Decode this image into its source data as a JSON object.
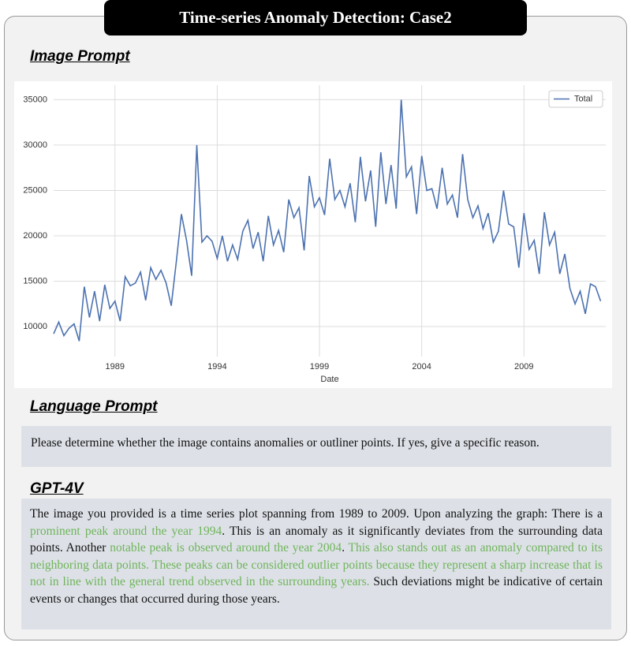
{
  "header": {
    "title": "Time-series Anomaly Detection: Case2"
  },
  "image_prompt": {
    "heading": "Image Prompt"
  },
  "chart_data": {
    "type": "line",
    "xlabel": "Date",
    "x": [
      1986,
      1986.25,
      1986.5,
      1986.75,
      1987,
      1987.25,
      1987.5,
      1987.75,
      1988,
      1988.25,
      1988.5,
      1988.75,
      1989,
      1989.25,
      1989.5,
      1989.75,
      1990,
      1990.25,
      1990.5,
      1990.75,
      1991,
      1991.25,
      1991.5,
      1991.75,
      1992,
      1992.25,
      1992.5,
      1992.75,
      1993,
      1993.25,
      1993.5,
      1993.75,
      1994,
      1994.25,
      1994.5,
      1994.75,
      1995,
      1995.25,
      1995.5,
      1995.75,
      1996,
      1996.25,
      1996.5,
      1996.75,
      1997,
      1997.25,
      1997.5,
      1997.75,
      1998,
      1998.25,
      1998.5,
      1998.75,
      1999,
      1999.25,
      1999.5,
      1999.75,
      2000,
      2000.25,
      2000.5,
      2000.75,
      2001,
      2001.25,
      2001.5,
      2001.75,
      2002,
      2002.25,
      2002.5,
      2002.75,
      2003,
      2003.25,
      2003.5,
      2003.75,
      2004,
      2004.25,
      2004.5,
      2004.75,
      2005,
      2005.25,
      2005.5,
      2005.75,
      2006,
      2006.25,
      2006.5,
      2006.75,
      2007,
      2007.25,
      2007.5,
      2007.75,
      2008,
      2008.25,
      2008.5,
      2008.75,
      2009,
      2009.25,
      2009.5,
      2009.75,
      2010,
      2010.25,
      2010.5,
      2010.75,
      2011,
      2011.25,
      2011.5,
      2011.75,
      2012,
      2012.25,
      2012.5,
      2012.75
    ],
    "series": [
      {
        "name": "Total",
        "color": "#4c72b0",
        "values": [
          9200,
          10500,
          9000,
          9800,
          10300,
          8400,
          14400,
          11000,
          13900,
          10600,
          14600,
          12000,
          12800,
          10600,
          15500,
          14500,
          14800,
          16000,
          12900,
          16500,
          15200,
          16200,
          14800,
          12300,
          17200,
          22400,
          19500,
          15600,
          30000,
          19300,
          20000,
          19400,
          17500,
          20000,
          17200,
          19000,
          17400,
          20500,
          21700,
          18600,
          20400,
          17200,
          22200,
          19000,
          20600,
          18200,
          24000,
          22000,
          23100,
          18400,
          26600,
          23200,
          24200,
          22300,
          28500,
          24000,
          25000,
          23200,
          25800,
          21500,
          28700,
          23800,
          27200,
          21000,
          29200,
          23500,
          27800,
          23000,
          35000,
          26500,
          27600,
          22400,
          28800,
          25000,
          25200,
          23000,
          27500,
          23500,
          24500,
          22000,
          29000,
          24000,
          22000,
          23300,
          20800,
          22500,
          19300,
          20500,
          25000,
          21300,
          21000,
          16500,
          22500,
          18500,
          19500,
          15800,
          22600,
          19000,
          20400,
          15800,
          18000,
          14200,
          12500,
          13900,
          11400,
          14700,
          14400,
          12800
        ]
      }
    ],
    "xlim": [
      1986,
      2013
    ],
    "xticks": [
      1989,
      1994,
      1999,
      2004,
      2009
    ],
    "ylim": [
      6700,
      36600
    ],
    "yticks": [
      10000,
      15000,
      20000,
      25000,
      30000,
      35000
    ],
    "grid": true,
    "legend": "upper right"
  },
  "language_prompt": {
    "heading": "Language Prompt",
    "text": "Please determine whether the image contains anomalies or outliner points. If yes, give a specific reason."
  },
  "response": {
    "heading": "GPT-4V",
    "segments": [
      {
        "text": "The image you provided is a time series plot spanning from 1989 to 2009. Upon analyzing the graph: There is a ",
        "highlight": false
      },
      {
        "text": "prominent peak around the year 1994",
        "highlight": true
      },
      {
        "text": ". This is an anomaly as it significantly deviates from the surrounding data points. Another ",
        "highlight": false
      },
      {
        "text": "notable peak is observed around the year 2004",
        "highlight": true
      },
      {
        "text": ". ",
        "highlight": false
      },
      {
        "text": "This also stands out as an anomaly compared to its neighboring data points. These peaks can be considered outlier points because they represent a sharp increase that is not in line with the general trend observed in the surrounding years.",
        "highlight": true
      },
      {
        "text": " Such deviations might be indicative of certain events or changes that occurred during those years.",
        "highlight": false
      }
    ]
  }
}
